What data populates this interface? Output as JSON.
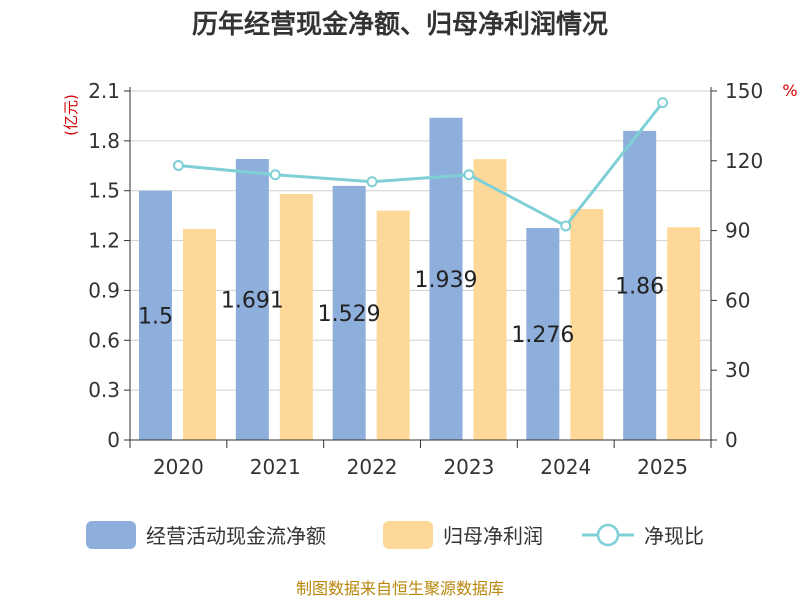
{
  "chart_data": {
    "type": "bar",
    "title": "历年经营现金净额、归母净利润情况",
    "categories": [
      "2020",
      "2021",
      "2022",
      "2023",
      "2024",
      "2025"
    ],
    "series": [
      {
        "name": "经营活动现金流净额",
        "kind": "bar",
        "axis": "left",
        "color": "#8eaedc",
        "values": [
          1.5,
          1.691,
          1.529,
          1.939,
          1.276,
          1.86
        ]
      },
      {
        "name": "归母净利润",
        "kind": "bar",
        "axis": "left",
        "color": "#fed898",
        "values": [
          1.27,
          1.48,
          1.38,
          1.69,
          1.39,
          1.28
        ]
      },
      {
        "name": "净现比",
        "kind": "line",
        "axis": "right",
        "color": "#7fd0d6",
        "values": [
          118,
          114,
          111,
          114,
          92,
          145
        ]
      }
    ],
    "data_labels": [
      "1.5",
      "1.691",
      "1.529",
      "1.939",
      "1.276",
      "1.86"
    ],
    "y_left": {
      "unit": "(亿元)",
      "ylim": [
        0,
        2.1
      ],
      "ticks": [
        "0",
        "0.3",
        "0.6",
        "0.9",
        "1.2",
        "1.5",
        "1.8",
        "2.1"
      ]
    },
    "y_right": {
      "unit": "%",
      "ylim": [
        0,
        150
      ],
      "ticks": [
        "0",
        "30",
        "60",
        "90",
        "120",
        "150"
      ]
    },
    "grid": true,
    "legend": "bottom"
  },
  "source": "制图数据来自恒生聚源数据库"
}
